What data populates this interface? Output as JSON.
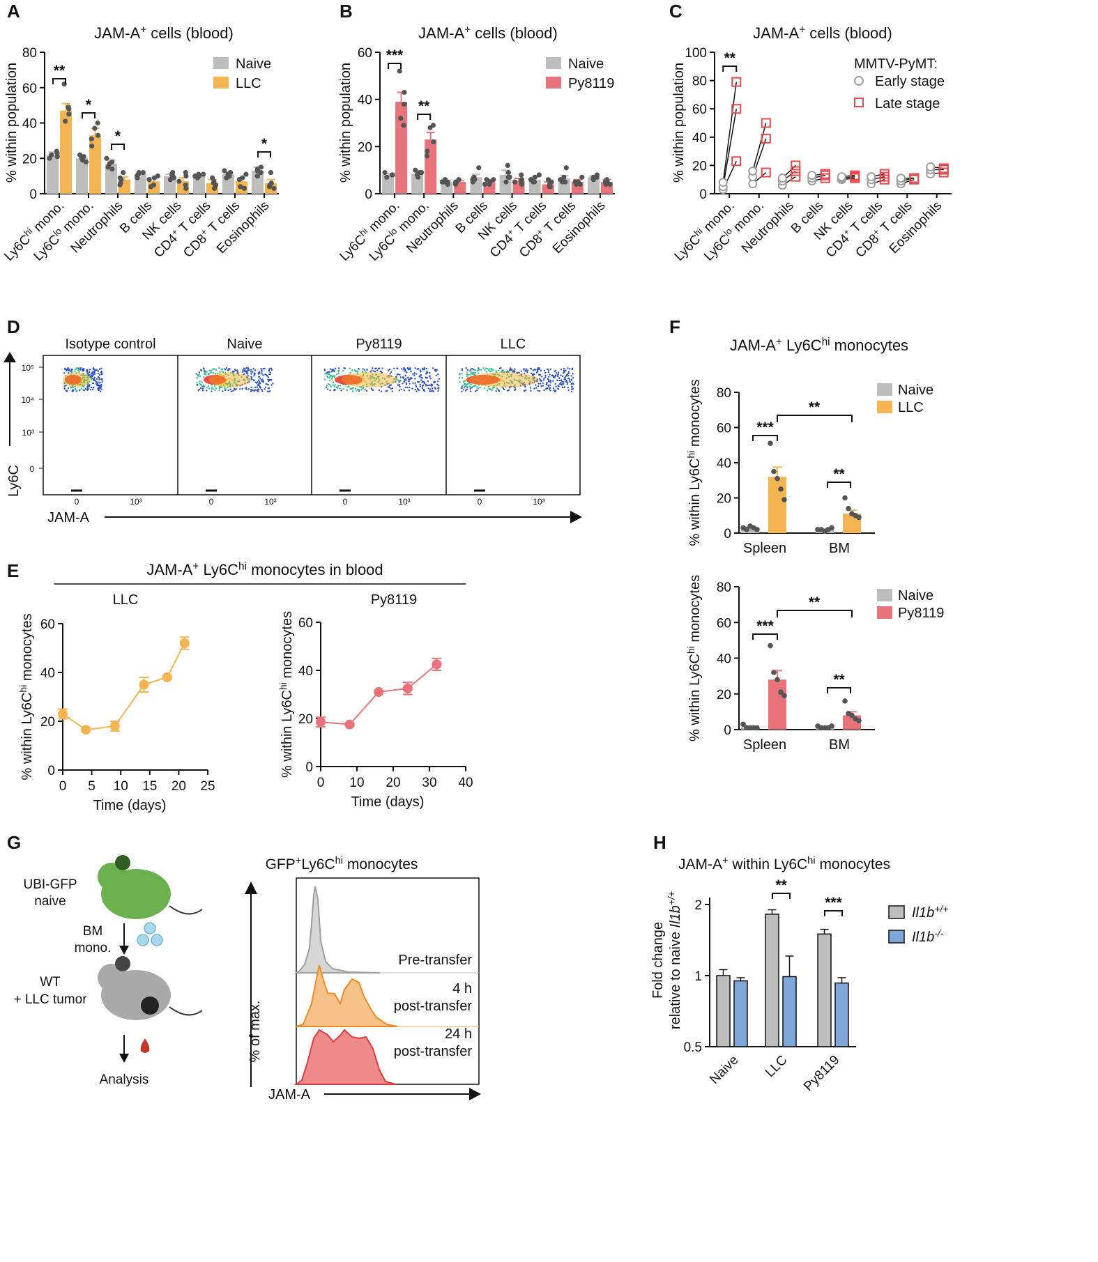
{
  "colors": {
    "naive": "#bdbdbd",
    "llc": "#f5b452",
    "py": "#e8737a",
    "early": "#9e9e9e",
    "late": "#e8474c",
    "ko": "#7fa7da",
    "dot": "#555555"
  },
  "chart_data": [
    {
      "id": "A",
      "type": "bar",
      "title": "JAM-A+ cells (blood)",
      "ylabel": "% within population",
      "ylim": [
        0,
        80
      ],
      "yticks": [
        0,
        20,
        40,
        60,
        80
      ],
      "categories": [
        "Ly6Chi mono.",
        "Ly6Clo mono.",
        "Neutrophils",
        "B cells",
        "NK cells",
        "CD4+ T cells",
        "CD8+ T cells",
        "Eosinophils"
      ],
      "series": [
        {
          "name": "Naive",
          "values": [
            22,
            20,
            17,
            11,
            10,
            10,
            11,
            13
          ],
          "errors": [
            1.5,
            1.5,
            2,
            1,
            1,
            1,
            1,
            2
          ],
          "points": [
            [
              24,
              22,
              20,
              23,
              21
            ],
            [
              22,
              19,
              20,
              18,
              21
            ],
            [
              20,
              14,
              17,
              15,
              18
            ],
            [
              12,
              10,
              11,
              9,
              12
            ],
            [
              11,
              9,
              12,
              8,
              10
            ],
            [
              11,
              9,
              10,
              11,
              10
            ],
            [
              12,
              10,
              13,
              9,
              11
            ],
            [
              15,
              10,
              13,
              14,
              12
            ]
          ]
        },
        {
          "name": "LLC",
          "values": [
            47,
            33,
            8,
            7,
            7,
            6,
            7,
            6
          ],
          "errors": [
            4,
            4,
            1.5,
            2,
            2,
            2,
            2,
            2
          ],
          "points": [
            [
              62,
              45,
              48,
              41,
              49
            ],
            [
              40,
              37,
              33,
              27,
              31
            ],
            [
              12,
              5,
              8,
              9,
              6
            ],
            [
              10,
              5,
              9,
              4,
              8
            ],
            [
              12,
              3,
              10,
              5,
              7
            ],
            [
              9,
              3,
              7,
              5,
              6
            ],
            [
              11,
              3,
              9,
              4,
              8
            ],
            [
              12,
              3,
              6,
              4,
              5
            ]
          ]
        }
      ],
      "legend": [
        "Naive",
        "LLC"
      ],
      "annotations": [
        {
          "cat": 0,
          "text": "**"
        },
        {
          "cat": 1,
          "text": "*"
        },
        {
          "cat": 2,
          "text": "*"
        },
        {
          "cat": 7,
          "text": "*"
        }
      ]
    },
    {
      "id": "B",
      "type": "bar",
      "title": "JAM-A+ cells (blood)",
      "ylabel": "% within population",
      "ylim": [
        0,
        60
      ],
      "yticks": [
        0,
        20,
        40,
        60
      ],
      "categories": [
        "Ly6Chi mono.",
        "Ly6Clo mono.",
        "Neutrophils",
        "B cells",
        "NK cells",
        "CD4+ T cells",
        "CD8+ T cells",
        "Eosinophils"
      ],
      "series": [
        {
          "name": "Naive",
          "values": [
            8,
            8.5,
            5,
            7,
            8,
            6,
            6.5,
            7
          ],
          "errors": [
            0.5,
            0.8,
            0.5,
            1.2,
            2,
            1,
            1.2,
            0.5
          ],
          "points": [
            [
              8,
              7,
              9,
              8,
              8
            ],
            [
              10,
              7,
              8,
              9,
              9
            ],
            [
              5,
              4,
              6,
              5,
              5
            ],
            [
              11,
              6,
              7,
              5,
              6
            ],
            [
              12,
              7,
              9,
              5,
              7
            ],
            [
              8,
              5,
              6,
              5,
              7
            ],
            [
              11,
              5,
              6,
              5,
              7
            ],
            [
              8,
              6,
              7,
              7,
              7
            ]
          ]
        },
        {
          "name": "Py8119",
          "values": [
            39,
            23,
            5,
            5,
            5.5,
            4,
            5,
            5
          ],
          "errors": [
            4,
            3,
            0.5,
            1,
            1,
            1,
            1,
            1
          ],
          "points": [
            [
              52,
              43,
              38,
              32,
              29
            ],
            [
              29,
              28,
              22,
              18,
              16
            ],
            [
              6,
              4,
              5,
              5,
              5
            ],
            [
              6,
              4,
              5,
              6,
              4
            ],
            [
              8,
              4,
              6,
              5,
              5
            ],
            [
              6,
              3,
              4,
              5,
              3
            ],
            [
              7,
              4,
              5,
              4,
              5
            ],
            [
              6,
              4,
              5,
              5,
              4
            ]
          ]
        }
      ],
      "legend": [
        "Naive",
        "Py8119"
      ],
      "annotations": [
        {
          "cat": 0,
          "text": "***"
        },
        {
          "cat": 1,
          "text": "**"
        }
      ]
    },
    {
      "id": "C",
      "type": "scatter",
      "title": "JAM-A+ cells (blood)",
      "ylabel": "% within population",
      "ylim": [
        0,
        100
      ],
      "yticks": [
        0,
        20,
        40,
        60,
        80,
        100
      ],
      "categories": [
        "Ly6Chi mono.",
        "Ly6Clo mono.",
        "Neutrophils",
        "B cells",
        "NK cells",
        "CD4+ T cells",
        "CD8+ T cells",
        "Eosinophils"
      ],
      "legend_title": "MMTV-PyMT:",
      "series": [
        {
          "name": "Early stage",
          "points": [
            [
              3,
              5,
              8
            ],
            [
              7,
              12,
              16
            ],
            [
              6,
              9,
              11
            ],
            [
              9,
              11,
              13
            ],
            [
              10,
              11,
              12
            ],
            [
              7,
              10,
              12
            ],
            [
              7,
              9,
              11
            ],
            [
              14,
              17,
              19
            ]
          ]
        },
        {
          "name": "Late stage",
          "points": [
            [
              23,
              60,
              79
            ],
            [
              15,
              39,
              50
            ],
            [
              12,
              16,
              20
            ],
            [
              11,
              13,
              14
            ],
            [
              11,
              12,
              13
            ],
            [
              10,
              12,
              14
            ],
            [
              10,
              11,
              11
            ],
            [
              15,
              17,
              18
            ]
          ]
        }
      ],
      "annotations": [
        {
          "cat": 0,
          "text": "**"
        }
      ]
    },
    {
      "id": "D",
      "type": "flow-density",
      "panels": [
        "Isotype control",
        "Naive",
        "Py8119",
        "LLC"
      ],
      "ylabel": "Ly6C",
      "xlabel": "JAM-A",
      "yticks": [
        "10⁵",
        "10⁴",
        "10³",
        "0"
      ],
      "xticks": [
        "0",
        "10³"
      ]
    },
    {
      "id": "E",
      "type": "line",
      "title": "JAM-A+ Ly6Chi monocytes in blood",
      "ylabel": "% within Ly6Chi monocytes",
      "xlabel": "Time (days)",
      "subplots": [
        {
          "name": "LLC",
          "xlim": [
            0,
            25
          ],
          "xticks": [
            0,
            5,
            10,
            15,
            20,
            25
          ],
          "ylim": [
            0,
            60
          ],
          "yticks": [
            0,
            20,
            40,
            60
          ],
          "x": [
            0,
            4,
            9,
            14,
            18,
            21
          ],
          "y": [
            23,
            16.5,
            18,
            35,
            38,
            52
          ],
          "err": [
            2,
            0.5,
            2,
            3,
            0.8,
            2.5
          ]
        },
        {
          "name": "Py8119",
          "xlim": [
            0,
            40
          ],
          "xticks": [
            0,
            10,
            20,
            30,
            40
          ],
          "ylim": [
            0,
            60
          ],
          "yticks": [
            0,
            20,
            40,
            60
          ],
          "x": [
            0,
            8,
            16,
            24,
            32
          ],
          "y": [
            18.5,
            17.5,
            31,
            32.5,
            42.5
          ],
          "err": [
            2,
            0.5,
            0.5,
            2.5,
            2.5
          ]
        }
      ]
    },
    {
      "id": "F",
      "type": "bar",
      "title": "JAM-A+ Ly6Chi monocytes",
      "ylabel": "% within Ly6Chi monocytes",
      "subplots": [
        {
          "categories": [
            "Spleen",
            "BM"
          ],
          "ylim": [
            0,
            80
          ],
          "yticks": [
            0,
            20,
            40,
            60,
            80
          ],
          "series": [
            {
              "name": "Naive",
              "values": [
                3,
                2
              ],
              "errors": [
                0.5,
                0.3
              ],
              "points": [
                [
                  3,
                  2,
                  4,
                  3,
                  2
                ],
                [
                  2,
                  2,
                  1,
                  2,
                  3
                ]
              ]
            },
            {
              "name": "LLC",
              "values": [
                32,
                11
              ],
              "errors": [
                5.5,
                2
              ],
              "points": [
                [
                  51,
                  35,
                  31,
                  25,
                  19
                ],
                [
                  20,
                  14,
                  11,
                  10,
                  9
                ]
              ]
            }
          ],
          "annotations": [
            {
              "text": "***",
              "type": "within",
              "cat": 0
            },
            {
              "text": "**",
              "type": "within",
              "cat": 1
            },
            {
              "text": "**",
              "type": "between"
            }
          ]
        },
        {
          "categories": [
            "Spleen",
            "BM"
          ],
          "ylim": [
            0,
            80
          ],
          "yticks": [
            0,
            20,
            40,
            60,
            80
          ],
          "series": [
            {
              "name": "Naive",
              "values": [
                1.5,
                1.5
              ],
              "errors": [
                0.5,
                0.3
              ],
              "points": [
                [
                  3,
                  1,
                  1,
                  1,
                  1
                ],
                [
                  2,
                  1,
                  1,
                  1,
                  2
                ]
              ]
            },
            {
              "name": "Py8119",
              "values": [
                28,
                8
              ],
              "errors": [
                5,
                2
              ],
              "points": [
                [
                  47,
                  32,
                  28,
                  21,
                  19
                ],
                [
                  16,
                  9,
                  8,
                  6,
                  5
                ]
              ]
            }
          ],
          "annotations": [
            {
              "text": "***",
              "type": "within",
              "cat": 0
            },
            {
              "text": "**",
              "type": "within",
              "cat": 1
            },
            {
              "text": "**",
              "type": "between"
            }
          ]
        }
      ]
    },
    {
      "id": "G",
      "type": "histogram-diagram",
      "title": "GFP+Ly6Chi monocytes",
      "ylabel": "% of max.",
      "xlabel": "JAM-A",
      "tracks": [
        {
          "label": "Pre-transfer"
        },
        {
          "label": "4 h",
          "label2": "post-transfer"
        },
        {
          "label": "24 h",
          "label2": "post-transfer"
        }
      ],
      "workflow": {
        "donor": "UBI-GFP",
        "donor2": "naive",
        "transfer": "BM",
        "transfer2": "mono.",
        "recipient": "WT",
        "recipient2": "+ LLC tumor",
        "end": "Analysis"
      }
    },
    {
      "id": "H",
      "type": "bar",
      "title": "JAM-A+ within Ly6Chi monocytes",
      "ylabel": "Fold change",
      "ylabel2": "relative to naive Il1b+/+",
      "yscale": "log2",
      "ylim": [
        0.5,
        2
      ],
      "yticks": [
        0.5,
        1,
        2
      ],
      "categories": [
        "Naive",
        "LLC",
        "Py8119"
      ],
      "series": [
        {
          "name": "Il1b+/+",
          "values": [
            1.0,
            1.82,
            1.5
          ],
          "errors": [
            0.06,
            0.08,
            0.07
          ]
        },
        {
          "name": "Il1b-/-",
          "values": [
            0.95,
            0.99,
            0.93
          ],
          "errors": [
            0.03,
            0.22,
            0.05
          ]
        }
      ],
      "annotations": [
        {
          "cat": 1,
          "text": "**"
        },
        {
          "cat": 2,
          "text": "***"
        }
      ]
    }
  ]
}
